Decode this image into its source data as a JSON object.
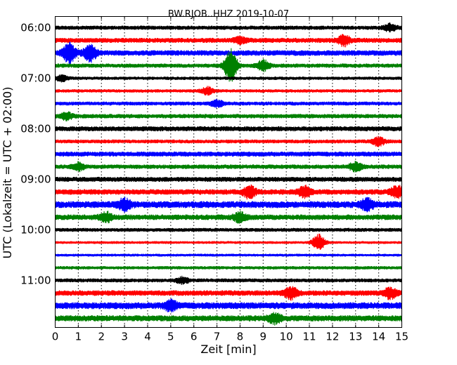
{
  "chart_data": {
    "type": "line",
    "title": "BW.RJOB..HHZ 2019-10-07",
    "xlabel": "Zeit  [min]",
    "ylabel": "UTC (Lokalzeit = UTC + 02:00)",
    "xlim": [
      0,
      15
    ],
    "xticks": [
      0,
      1,
      2,
      3,
      4,
      5,
      6,
      7,
      8,
      9,
      10,
      11,
      12,
      13,
      14,
      15
    ],
    "yticks": [
      "06:00",
      "07:00",
      "08:00",
      "09:00",
      "10:00",
      "11:00"
    ],
    "row_interval_min": 15,
    "grid": "vertical dotted",
    "trace_colors": [
      "#000000",
      "#ff0000",
      "#0000ff",
      "#008000"
    ],
    "traces": [
      {
        "start": "06:00",
        "amplitude": 0.15,
        "bursts": [
          {
            "t": 14.5,
            "a": 0.25
          }
        ]
      },
      {
        "start": "06:15",
        "amplitude": 0.18,
        "bursts": [
          {
            "t": 12.5,
            "a": 0.35
          },
          {
            "t": 8.0,
            "a": 0.2
          }
        ]
      },
      {
        "start": "06:30",
        "amplitude": 0.2,
        "bursts": [
          {
            "t": 0.6,
            "a": 0.7
          },
          {
            "t": 1.5,
            "a": 0.6
          }
        ]
      },
      {
        "start": "06:45",
        "amplitude": 0.15,
        "bursts": [
          {
            "t": 7.6,
            "a": 1.2
          },
          {
            "t": 9.0,
            "a": 0.35
          }
        ]
      },
      {
        "start": "07:00",
        "amplitude": 0.12,
        "bursts": [
          {
            "t": 0.3,
            "a": 0.2
          }
        ]
      },
      {
        "start": "07:15",
        "amplitude": 0.12,
        "bursts": [
          {
            "t": 6.6,
            "a": 0.25
          }
        ]
      },
      {
        "start": "07:30",
        "amplitude": 0.14,
        "bursts": [
          {
            "t": 7.0,
            "a": 0.22
          }
        ]
      },
      {
        "start": "07:45",
        "amplitude": 0.16,
        "bursts": [
          {
            "t": 0.5,
            "a": 0.22
          }
        ]
      },
      {
        "start": "08:00",
        "amplitude": 0.18,
        "bursts": []
      },
      {
        "start": "08:15",
        "amplitude": 0.14,
        "bursts": [
          {
            "t": 14.0,
            "a": 0.3
          }
        ]
      },
      {
        "start": "08:30",
        "amplitude": 0.18,
        "bursts": []
      },
      {
        "start": "08:45",
        "amplitude": 0.16,
        "bursts": [
          {
            "t": 1.0,
            "a": 0.25
          },
          {
            "t": 13.0,
            "a": 0.3
          }
        ]
      },
      {
        "start": "09:00",
        "amplitude": 0.18,
        "bursts": []
      },
      {
        "start": "09:15",
        "amplitude": 0.2,
        "bursts": [
          {
            "t": 8.4,
            "a": 0.4
          },
          {
            "t": 10.8,
            "a": 0.35
          },
          {
            "t": 14.8,
            "a": 0.4
          }
        ]
      },
      {
        "start": "09:30",
        "amplitude": 0.25,
        "bursts": [
          {
            "t": 3.0,
            "a": 0.35
          },
          {
            "t": 13.5,
            "a": 0.35
          }
        ]
      },
      {
        "start": "09:45",
        "amplitude": 0.2,
        "bursts": [
          {
            "t": 2.2,
            "a": 0.3
          },
          {
            "t": 8.0,
            "a": 0.3
          }
        ]
      },
      {
        "start": "10:00",
        "amplitude": 0.14,
        "bursts": []
      },
      {
        "start": "10:15",
        "amplitude": 0.1,
        "bursts": [
          {
            "t": 11.4,
            "a": 0.55
          }
        ]
      },
      {
        "start": "10:30",
        "amplitude": 0.1,
        "bursts": []
      },
      {
        "start": "10:45",
        "amplitude": 0.12,
        "bursts": []
      },
      {
        "start": "11:00",
        "amplitude": 0.14,
        "bursts": [
          {
            "t": 5.5,
            "a": 0.2
          }
        ]
      },
      {
        "start": "11:15",
        "amplitude": 0.2,
        "bursts": [
          {
            "t": 10.2,
            "a": 0.4
          },
          {
            "t": 14.5,
            "a": 0.35
          }
        ]
      },
      {
        "start": "11:30",
        "amplitude": 0.25,
        "bursts": [
          {
            "t": 5.0,
            "a": 0.3
          }
        ]
      },
      {
        "start": "11:45",
        "amplitude": 0.22,
        "bursts": [
          {
            "t": 9.5,
            "a": 0.3
          }
        ]
      }
    ]
  }
}
